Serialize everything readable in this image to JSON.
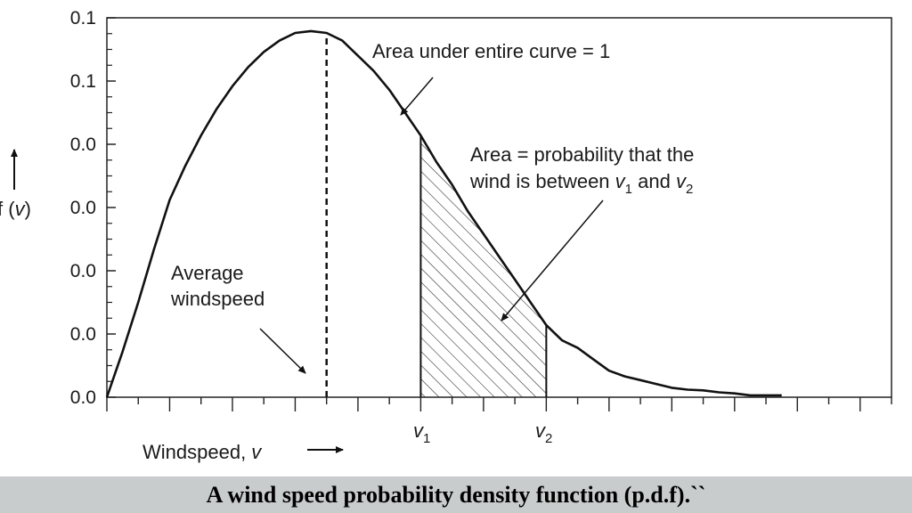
{
  "chart_data": {
    "type": "area",
    "title": "",
    "xlabel": "Windspeed, v",
    "ylabel": "f (v)",
    "y_tick_labels": [
      "0.0",
      "0.0",
      "0.0",
      "0.0",
      "0.0",
      "0.1",
      "0.1"
    ],
    "ylim": [
      0,
      1
    ],
    "xlim": [
      0,
      25
    ],
    "series": [
      {
        "x": [
          0,
          0.5,
          1,
          1.5,
          2,
          2.5,
          3,
          3.5,
          4,
          4.5,
          5,
          5.5,
          6,
          6.5,
          7,
          7.5,
          8,
          8.5,
          9,
          9.5,
          10,
          10.5,
          11,
          11.5,
          12,
          12.5,
          13,
          13.5,
          14,
          14.5,
          15,
          15.5,
          16,
          16.5,
          17,
          17.5,
          18,
          18.5,
          19,
          19.5,
          20,
          20.5,
          21,
          21.5
        ],
        "y": [
          0.0,
          0.12,
          0.25,
          0.39,
          0.52,
          0.61,
          0.69,
          0.76,
          0.82,
          0.87,
          0.91,
          0.94,
          0.96,
          0.965,
          0.96,
          0.94,
          0.9,
          0.86,
          0.81,
          0.75,
          0.69,
          0.62,
          0.56,
          0.49,
          0.43,
          0.37,
          0.31,
          0.25,
          0.19,
          0.15,
          0.13,
          0.1,
          0.07,
          0.055,
          0.045,
          0.035,
          0.025,
          0.02,
          0.018,
          0.013,
          0.01,
          0.005,
          0.005,
          0.005
        ]
      }
    ],
    "average_windspeed": 7,
    "shaded_region": {
      "from": 10,
      "to": 14,
      "from_label": "v",
      "from_sub": "1",
      "to_label": "v",
      "to_sub": "2"
    },
    "annotations": {
      "area_total": "Area under entire curve = 1",
      "area_prob_line1": "Area = probability that the",
      "area_prob_line2_pre": "wind is between ",
      "area_prob_v1": "v",
      "area_prob_sub1": "1",
      "area_prob_and": " and ",
      "area_prob_v2": "v",
      "area_prob_sub2": "2",
      "avg_line1": "Average",
      "avg_line2": "windspeed"
    },
    "xlabel_text": "Windspeed, ",
    "xlabel_var": "v",
    "ylabel_text": "f (",
    "ylabel_var": "v",
    "ylabel_close": ")"
  },
  "caption": "A wind speed probability density function (p.d.f).``"
}
